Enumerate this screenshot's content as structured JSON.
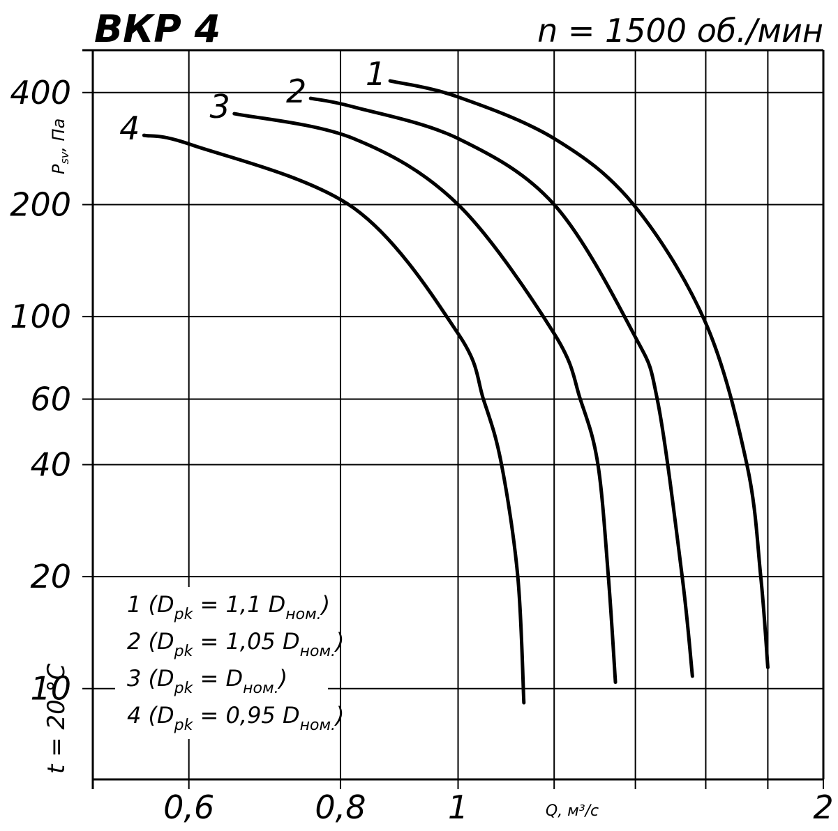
{
  "chart_data": {
    "type": "line",
    "title": "ВКР 4",
    "subtitle": "n = 1500 об./мин",
    "x_label": "Q, м³/с",
    "y_label": [
      "P",
      "sv",
      ", Па"
    ],
    "note": "t = 20 °C",
    "log_x": true,
    "log_y": true,
    "grid": true,
    "color": "#000000",
    "xlim": [
      0.5,
      2
    ],
    "ylim": [
      5.7,
      520
    ],
    "xticks": [
      {
        "value": 0.6,
        "label": "0,6"
      },
      {
        "value": 0.8,
        "label": "0,8"
      },
      1,
      2
    ],
    "xminor": [
      1.2,
      1.4,
      1.6,
      1.8
    ],
    "yticks": [
      10,
      20,
      40,
      60,
      100,
      200,
      400
    ],
    "series": [
      {
        "name": "1",
        "x": [
          0.879,
          0.996,
          1.2,
          1.395,
          1.6,
          1.73,
          1.776,
          1.8
        ],
        "values": [
          430,
          391,
          301,
          200,
          96,
          40,
          20,
          11.4
        ]
      },
      {
        "name": "2",
        "x": [
          0.756,
          0.82,
          1,
          1.2,
          1.395,
          1.46,
          1.53,
          1.56
        ],
        "values": [
          386,
          366,
          301,
          200,
          90,
          59.5,
          20,
          10.8
        ]
      },
      {
        "name": "3",
        "x": [
          0.654,
          0.82,
          1,
          1.2,
          1.262,
          1.304,
          1.33,
          1.348
        ],
        "values": [
          351,
          301,
          200,
          90,
          59.5,
          40,
          20,
          10.4
        ]
      },
      {
        "name": "4",
        "x": [
          0.551,
          0.604,
          0.82,
          1,
          1.05,
          1.086,
          1.12,
          1.133
        ],
        "values": [
          307,
          289,
          196,
          90,
          59.5,
          40,
          20,
          9.16
        ]
      }
    ],
    "legend": [
      [
        "1 (D",
        "pk",
        " = 1,1 D",
        "ном.",
        ")"
      ],
      [
        "2 (D",
        "pk",
        " = 1,05 D",
        "ном.",
        ")"
      ],
      [
        "3 (D",
        "pk",
        " = D",
        "ном.",
        ")"
      ],
      [
        "4 (D",
        "pk",
        " = 0,95 D",
        "ном.",
        ")"
      ]
    ]
  }
}
